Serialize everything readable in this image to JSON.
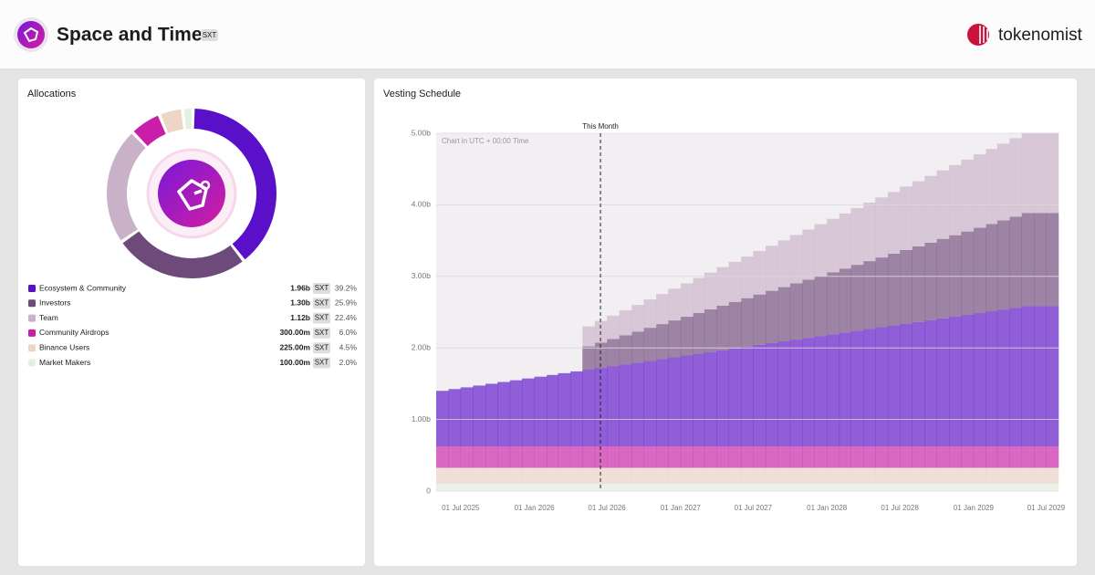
{
  "header": {
    "title": "Space and Time",
    "ticker": "SXT",
    "brand": "tokenomist"
  },
  "chart_data": [
    {
      "type": "donut",
      "title": "Allocations",
      "categories": [
        "Ecosystem & Community",
        "Investors",
        "Team",
        "Community Airdrops",
        "Binance Users",
        "Market Makers"
      ],
      "values": [
        39.2,
        25.9,
        22.4,
        6.0,
        4.5,
        2.0
      ],
      "value_labels": [
        "39.2%",
        "25.9%",
        "22.4%",
        "6.0%",
        "4.5%",
        "2.0%"
      ],
      "amounts": [
        1.96,
        1.3,
        1.12,
        0.3,
        0.225,
        0.1
      ],
      "amount_labels": [
        "1.96b",
        "1.30b",
        "1.12b",
        "300.00m",
        "225.00m",
        "100.00m"
      ],
      "unit": "SXT",
      "colors": [
        "#5a10c8",
        "#6e4a7a",
        "#c9b2c8",
        "#c91fa8",
        "#edd6c8",
        "#e3f1e3"
      ]
    },
    {
      "type": "stacked-step-area",
      "title": "Vesting Schedule",
      "note": "Chart in UTC + 00:00 Time",
      "annotation": {
        "text": "This Month",
        "x": "2026-06-15"
      },
      "x": [
        "2025-05-01",
        "2025-06-01",
        "2025-07-01",
        "2025-08-01",
        "2025-09-01",
        "2025-10-01",
        "2025-11-01",
        "2025-12-01",
        "2026-01-01",
        "2026-02-01",
        "2026-03-01",
        "2026-04-01",
        "2026-05-01",
        "2026-06-01",
        "2026-07-01",
        "2026-08-01",
        "2026-09-01",
        "2026-10-01",
        "2026-11-01",
        "2026-12-01",
        "2027-01-01",
        "2027-02-01",
        "2027-03-01",
        "2027-04-01",
        "2027-05-01",
        "2027-06-01",
        "2027-07-01",
        "2027-08-01",
        "2027-09-01",
        "2027-10-01",
        "2027-11-01",
        "2027-12-01",
        "2028-01-01",
        "2028-02-01",
        "2028-03-01",
        "2028-04-01",
        "2028-05-01",
        "2028-06-01",
        "2028-07-01",
        "2028-08-01",
        "2028-09-01",
        "2028-10-01",
        "2028-11-01",
        "2028-12-01",
        "2029-01-01",
        "2029-02-01",
        "2029-03-01",
        "2029-04-01",
        "2029-05-01",
        "2029-06-01",
        "2029-07-01"
      ],
      "xlim": [
        "2025-05-01",
        "2029-08-01"
      ],
      "xticks": [
        {
          "value": "2025-07-01",
          "label": "01 Jul 2025"
        },
        {
          "value": "2026-01-01",
          "label": "01 Jan 2026"
        },
        {
          "value": "2026-07-01",
          "label": "01 Jul 2026"
        },
        {
          "value": "2027-01-01",
          "label": "01 Jan 2027"
        },
        {
          "value": "2027-07-01",
          "label": "01 Jul 2027"
        },
        {
          "value": "2028-01-01",
          "label": "01 Jan 2028"
        },
        {
          "value": "2028-07-01",
          "label": "01 Jul 2028"
        },
        {
          "value": "2029-01-01",
          "label": "01 Jan 2029"
        },
        {
          "value": "2029-07-01",
          "label": "01 Jul 2029"
        }
      ],
      "ylim": [
        0,
        5
      ],
      "yticks": [
        0,
        {
          "value": 1,
          "label": "1.00b"
        },
        {
          "value": 2,
          "label": "2.00b"
        },
        {
          "value": 3,
          "label": "3.00b"
        },
        {
          "value": 4,
          "label": "4.00b"
        },
        {
          "value": 5,
          "label": "5.00b"
        }
      ],
      "grid": true,
      "series": [
        {
          "color": "#e3f1e3",
          "values": [
            0.1,
            0.1,
            0.1,
            0.1,
            0.1,
            0.1,
            0.1,
            0.1,
            0.1,
            0.1,
            0.1,
            0.1,
            0.1,
            0.1,
            0.1,
            0.1,
            0.1,
            0.1,
            0.1,
            0.1,
            0.1,
            0.1,
            0.1,
            0.1,
            0.1,
            0.1,
            0.1,
            0.1,
            0.1,
            0.1,
            0.1,
            0.1,
            0.1,
            0.1,
            0.1,
            0.1,
            0.1,
            0.1,
            0.1,
            0.1,
            0.1,
            0.1,
            0.1,
            0.1,
            0.1,
            0.1,
            0.1,
            0.1,
            0.1,
            0.1,
            0.1
          ]
        },
        {
          "color": "#edd6c8",
          "values": [
            0.225,
            0.225,
            0.225,
            0.225,
            0.225,
            0.225,
            0.225,
            0.225,
            0.225,
            0.225,
            0.225,
            0.225,
            0.225,
            0.225,
            0.225,
            0.225,
            0.225,
            0.225,
            0.225,
            0.225,
            0.225,
            0.225,
            0.225,
            0.225,
            0.225,
            0.225,
            0.225,
            0.225,
            0.225,
            0.225,
            0.225,
            0.225,
            0.225,
            0.225,
            0.225,
            0.225,
            0.225,
            0.225,
            0.225,
            0.225,
            0.225,
            0.225,
            0.225,
            0.225,
            0.225,
            0.225,
            0.225,
            0.225,
            0.225,
            0.225,
            0.225
          ]
        },
        {
          "color": "#c91fa8",
          "values": [
            0.3,
            0.3,
            0.3,
            0.3,
            0.3,
            0.3,
            0.3,
            0.3,
            0.3,
            0.3,
            0.3,
            0.3,
            0.3,
            0.3,
            0.3,
            0.3,
            0.3,
            0.3,
            0.3,
            0.3,
            0.3,
            0.3,
            0.3,
            0.3,
            0.3,
            0.3,
            0.3,
            0.3,
            0.3,
            0.3,
            0.3,
            0.3,
            0.3,
            0.3,
            0.3,
            0.3,
            0.3,
            0.3,
            0.3,
            0.3,
            0.3,
            0.3,
            0.3,
            0.3,
            0.3,
            0.3,
            0.3,
            0.3,
            0.3,
            0.3,
            0.3
          ]
        },
        {
          "color": "#5a10c8",
          "values": [
            0.775,
            0.8,
            0.824,
            0.849,
            0.874,
            0.899,
            0.923,
            0.948,
            0.973,
            0.997,
            1.022,
            1.047,
            1.071,
            1.096,
            1.121,
            1.146,
            1.17,
            1.195,
            1.22,
            1.244,
            1.269,
            1.294,
            1.318,
            1.343,
            1.368,
            1.393,
            1.417,
            1.442,
            1.467,
            1.491,
            1.516,
            1.541,
            1.565,
            1.59,
            1.615,
            1.64,
            1.664,
            1.689,
            1.714,
            1.738,
            1.763,
            1.788,
            1.812,
            1.837,
            1.862,
            1.887,
            1.911,
            1.936,
            1.96,
            1.96,
            1.96
          ]
        },
        {
          "color": "#6e4a7a",
          "values": [
            0,
            0,
            0,
            0,
            0,
            0,
            0,
            0,
            0,
            0,
            0,
            0,
            0.325,
            0.352,
            0.379,
            0.406,
            0.433,
            0.461,
            0.488,
            0.515,
            0.542,
            0.569,
            0.596,
            0.623,
            0.65,
            0.677,
            0.704,
            0.731,
            0.758,
            0.786,
            0.813,
            0.84,
            0.867,
            0.894,
            0.921,
            0.948,
            0.975,
            1.002,
            1.029,
            1.056,
            1.083,
            1.111,
            1.138,
            1.165,
            1.192,
            1.219,
            1.246,
            1.273,
            1.3,
            1.3,
            1.3
          ]
        },
        {
          "color": "#c9b2c8",
          "values": [
            0,
            0,
            0,
            0,
            0,
            0,
            0,
            0,
            0,
            0,
            0,
            0,
            0.28,
            0.303,
            0.327,
            0.35,
            0.373,
            0.397,
            0.42,
            0.443,
            0.467,
            0.49,
            0.513,
            0.537,
            0.56,
            0.583,
            0.607,
            0.63,
            0.653,
            0.677,
            0.7,
            0.723,
            0.747,
            0.77,
            0.793,
            0.817,
            0.84,
            0.863,
            0.887,
            0.91,
            0.933,
            0.957,
            0.98,
            1.003,
            1.027,
            1.05,
            1.073,
            1.097,
            1.12,
            1.12,
            1.12
          ]
        }
      ]
    }
  ]
}
